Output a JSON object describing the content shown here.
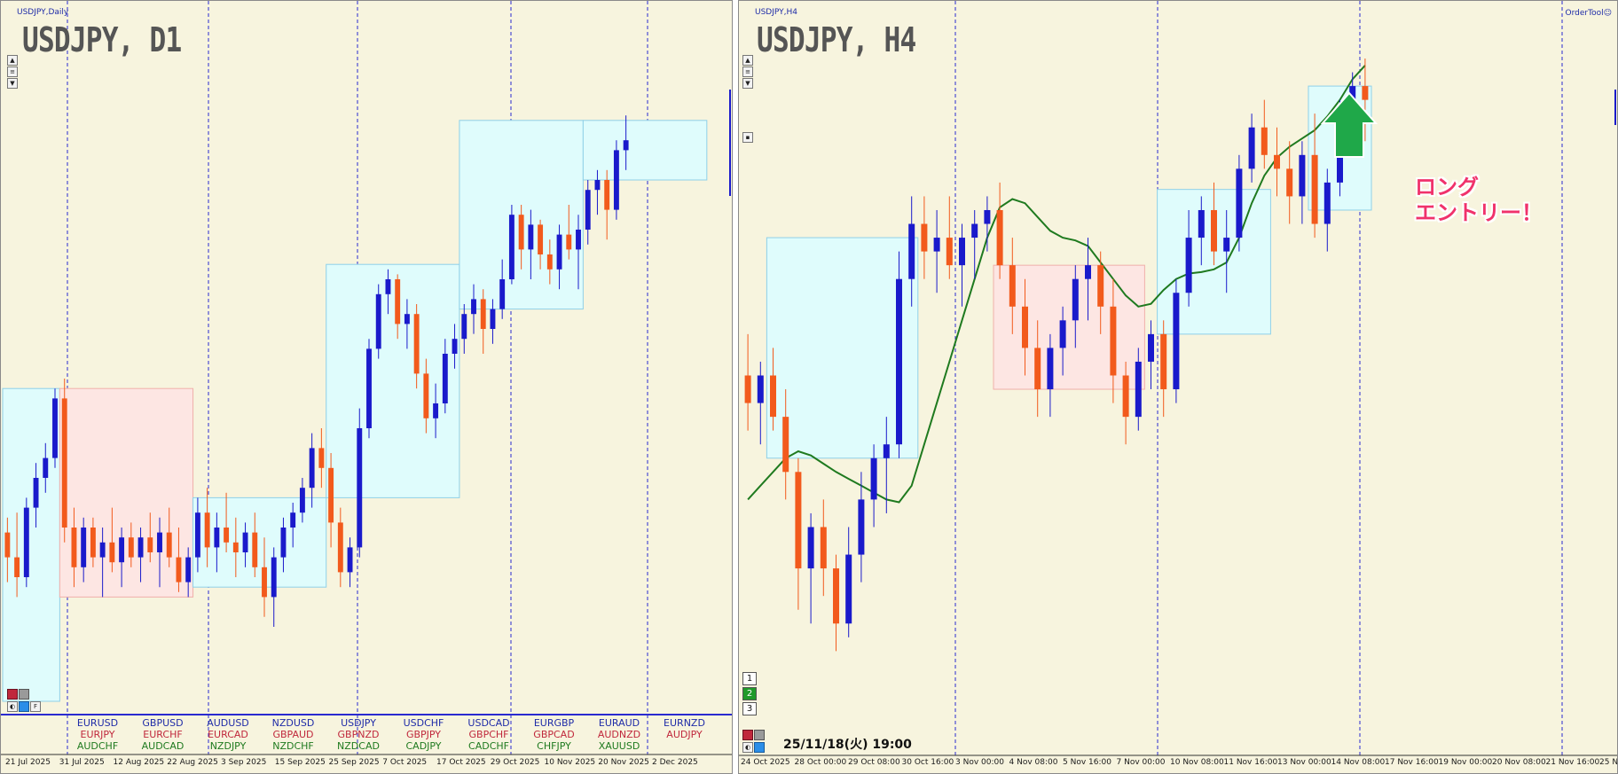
{
  "left_panel": {
    "caption": "USDJPY,Daily",
    "title": "USDJPY, D1",
    "x_labels": [
      "21 Jul 2025",
      "31 Jul 2025",
      "12 Aug 2025",
      "22 Aug 2025",
      "3 Sep 2025",
      "15 Sep 2025",
      "25 Sep 2025",
      "7 Oct 2025",
      "17 Oct 2025",
      "29 Oct 2025",
      "10 Nov 2025",
      "20 Nov 2025",
      "2 Dec 2025"
    ],
    "symbols": [
      [
        {
          "text": "EURUSD",
          "c": "#1f2ca8"
        },
        {
          "text": "EURJPY",
          "c": "#c0283c"
        },
        {
          "text": "AUDCHF",
          "c": "#1f7a1f"
        }
      ],
      [
        {
          "text": "GBPUSD",
          "c": "#1f2ca8"
        },
        {
          "text": "EURCHF",
          "c": "#c0283c"
        },
        {
          "text": "AUDCAD",
          "c": "#1f7a1f"
        }
      ],
      [
        {
          "text": "AUDUSD",
          "c": "#1f2ca8"
        },
        {
          "text": "EURCAD",
          "c": "#c0283c"
        },
        {
          "text": "NZDJPY",
          "c": "#1f7a1f"
        }
      ],
      [
        {
          "text": "NZDUSD",
          "c": "#1f2ca8"
        },
        {
          "text": "GBPAUD",
          "c": "#c0283c"
        },
        {
          "text": "NZDCHF",
          "c": "#1f7a1f"
        }
      ],
      [
        {
          "text": "USDJPY",
          "c": "#1f2ca8"
        },
        {
          "text": "GBPNZD",
          "c": "#c0283c"
        },
        {
          "text": "NZDCAD",
          "c": "#1f7a1f"
        }
      ],
      [
        {
          "text": "USDCHF",
          "c": "#1f2ca8"
        },
        {
          "text": "GBPJPY",
          "c": "#c0283c"
        },
        {
          "text": "CADJPY",
          "c": "#1f7a1f"
        }
      ],
      [
        {
          "text": "USDCAD",
          "c": "#1f2ca8"
        },
        {
          "text": "GBPCHF",
          "c": "#c0283c"
        },
        {
          "text": "CADCHF",
          "c": "#1f7a1f"
        }
      ],
      [
        {
          "text": "EURGBP",
          "c": "#1f2ca8"
        },
        {
          "text": "GBPCAD",
          "c": "#c0283c"
        },
        {
          "text": "CHFJPY",
          "c": "#1f7a1f"
        }
      ],
      [
        {
          "text": "EURAUD",
          "c": "#1f2ca8"
        },
        {
          "text": "AUDNZD",
          "c": "#c0283c"
        },
        {
          "text": "XAUUSD",
          "c": "#1f7a1f"
        }
      ],
      [
        {
          "text": "EURNZD",
          "c": "#1f2ca8"
        },
        {
          "text": "AUDJPY",
          "c": "#c0283c"
        }
      ]
    ],
    "buttons": {
      "f_label": "F"
    }
  },
  "right_panel": {
    "caption": "USDJPY,H4",
    "title": "USDJPY, H4",
    "order_tool": "OrderTool",
    "timestamp": "25/11/18(火) 19:00",
    "annotation": [
      "ロング",
      "エントリー！"
    ],
    "x_labels": [
      "24 Oct 2025",
      "28 Oct 00:00",
      "29 Oct 08:00",
      "30 Oct 16:00",
      "3 Nov 00:00",
      "4 Nov 08:00",
      "5 Nov 16:00",
      "7 Nov 00:00",
      "10 Nov 08:00",
      "11 Nov 16:00",
      "13 Nov 00:00",
      "14 Nov 08:00",
      "17 Nov 16:00",
      "19 Nov 00:00",
      "20 Nov 08:00",
      "21 Nov 16:00",
      "25 N"
    ],
    "num_buttons": [
      "1",
      "2",
      "3"
    ]
  },
  "colors": {
    "background": "#f7f4de",
    "bull": "#1a1acb",
    "bear": "#f25a1c",
    "range_up": "#dffcfc",
    "range_down": "#fde6e3",
    "ma": "#1f7a1f",
    "arrow": "#1fa849"
  },
  "chart_data": [
    {
      "type": "candlestick",
      "symbol": "USDJPY",
      "timeframe": "D1",
      "x_ticks": [
        "21 Jul 2025",
        "31 Jul 2025",
        "12 Aug 2025",
        "22 Aug 2025",
        "3 Sep 2025",
        "15 Sep 2025",
        "25 Sep 2025",
        "7 Oct 2025",
        "17 Oct 2025",
        "29 Oct 2025",
        "10 Nov 2025",
        "20 Nov 2025",
        "2 Dec 2025"
      ],
      "ylim": [
        144.5,
        157.5
      ],
      "candles": [
        {
          "o": 147.9,
          "h": 148.2,
          "l": 146.9,
          "c": 147.4
        },
        {
          "o": 147.4,
          "h": 148.3,
          "l": 146.6,
          "c": 147.0
        },
        {
          "o": 147.0,
          "h": 148.6,
          "l": 146.8,
          "c": 148.4
        },
        {
          "o": 148.4,
          "h": 149.3,
          "l": 148.0,
          "c": 149.0
        },
        {
          "o": 149.0,
          "h": 149.7,
          "l": 148.7,
          "c": 149.4
        },
        {
          "o": 149.4,
          "h": 150.8,
          "l": 149.2,
          "c": 150.6
        },
        {
          "o": 150.6,
          "h": 151.0,
          "l": 147.7,
          "c": 148.0
        },
        {
          "o": 148.0,
          "h": 148.4,
          "l": 146.8,
          "c": 147.2
        },
        {
          "o": 147.2,
          "h": 148.2,
          "l": 146.9,
          "c": 148.0
        },
        {
          "o": 148.0,
          "h": 148.2,
          "l": 147.2,
          "c": 147.4
        },
        {
          "o": 147.4,
          "h": 148.0,
          "l": 146.6,
          "c": 147.7
        },
        {
          "o": 147.7,
          "h": 148.4,
          "l": 147.1,
          "c": 147.3
        },
        {
          "o": 147.3,
          "h": 148.0,
          "l": 146.8,
          "c": 147.8
        },
        {
          "o": 147.8,
          "h": 148.1,
          "l": 147.2,
          "c": 147.4
        },
        {
          "o": 147.4,
          "h": 148.0,
          "l": 146.9,
          "c": 147.8
        },
        {
          "o": 147.8,
          "h": 148.3,
          "l": 147.3,
          "c": 147.5
        },
        {
          "o": 147.5,
          "h": 148.2,
          "l": 146.8,
          "c": 147.9
        },
        {
          "o": 147.9,
          "h": 148.4,
          "l": 147.2,
          "c": 147.4
        },
        {
          "o": 147.4,
          "h": 148.0,
          "l": 146.7,
          "c": 146.9
        },
        {
          "o": 146.9,
          "h": 147.6,
          "l": 146.6,
          "c": 147.4
        },
        {
          "o": 147.4,
          "h": 148.6,
          "l": 147.1,
          "c": 148.3
        },
        {
          "o": 148.3,
          "h": 148.8,
          "l": 147.2,
          "c": 147.6
        },
        {
          "o": 147.6,
          "h": 148.3,
          "l": 147.1,
          "c": 148.0
        },
        {
          "o": 148.0,
          "h": 148.7,
          "l": 147.5,
          "c": 147.7
        },
        {
          "o": 147.7,
          "h": 148.2,
          "l": 147.0,
          "c": 147.5
        },
        {
          "o": 147.5,
          "h": 148.1,
          "l": 147.2,
          "c": 147.9
        },
        {
          "o": 147.9,
          "h": 148.3,
          "l": 147.0,
          "c": 147.2
        },
        {
          "o": 147.2,
          "h": 147.8,
          "l": 146.2,
          "c": 146.6
        },
        {
          "o": 146.6,
          "h": 147.6,
          "l": 146.0,
          "c": 147.4
        },
        {
          "o": 147.4,
          "h": 148.2,
          "l": 147.1,
          "c": 148.0
        },
        {
          "o": 148.0,
          "h": 148.5,
          "l": 147.6,
          "c": 148.3
        },
        {
          "o": 148.3,
          "h": 149.0,
          "l": 148.1,
          "c": 148.8
        },
        {
          "o": 148.8,
          "h": 149.9,
          "l": 148.4,
          "c": 149.6
        },
        {
          "o": 149.6,
          "h": 150.0,
          "l": 148.8,
          "c": 149.2
        },
        {
          "o": 149.2,
          "h": 149.5,
          "l": 147.6,
          "c": 148.1
        },
        {
          "o": 148.1,
          "h": 148.4,
          "l": 146.8,
          "c": 147.1
        },
        {
          "o": 147.1,
          "h": 147.8,
          "l": 146.8,
          "c": 147.6
        },
        {
          "o": 147.6,
          "h": 150.4,
          "l": 147.4,
          "c": 150.0
        },
        {
          "o": 150.0,
          "h": 151.8,
          "l": 149.8,
          "c": 151.6
        },
        {
          "o": 151.6,
          "h": 152.9,
          "l": 151.4,
          "c": 152.7
        },
        {
          "o": 152.7,
          "h": 153.2,
          "l": 152.3,
          "c": 153.0
        },
        {
          "o": 153.0,
          "h": 153.1,
          "l": 151.8,
          "c": 152.1
        },
        {
          "o": 152.1,
          "h": 152.6,
          "l": 151.6,
          "c": 152.3
        },
        {
          "o": 152.3,
          "h": 152.5,
          "l": 150.8,
          "c": 151.1
        },
        {
          "o": 151.1,
          "h": 151.4,
          "l": 149.9,
          "c": 150.2
        },
        {
          "o": 150.2,
          "h": 150.9,
          "l": 149.8,
          "c": 150.5
        },
        {
          "o": 150.5,
          "h": 151.8,
          "l": 150.3,
          "c": 151.5
        },
        {
          "o": 151.5,
          "h": 152.1,
          "l": 151.2,
          "c": 151.8
        },
        {
          "o": 151.8,
          "h": 152.5,
          "l": 151.5,
          "c": 152.3
        },
        {
          "o": 152.3,
          "h": 152.9,
          "l": 151.9,
          "c": 152.6
        },
        {
          "o": 152.6,
          "h": 152.8,
          "l": 151.5,
          "c": 152.0
        },
        {
          "o": 152.0,
          "h": 152.6,
          "l": 151.7,
          "c": 152.4
        },
        {
          "o": 152.4,
          "h": 153.4,
          "l": 152.2,
          "c": 153.0
        },
        {
          "o": 153.0,
          "h": 154.5,
          "l": 152.9,
          "c": 154.3
        },
        {
          "o": 154.3,
          "h": 154.5,
          "l": 153.2,
          "c": 153.6
        },
        {
          "o": 153.6,
          "h": 154.4,
          "l": 153.0,
          "c": 154.1
        },
        {
          "o": 154.1,
          "h": 154.2,
          "l": 153.2,
          "c": 153.5
        },
        {
          "o": 153.5,
          "h": 153.8,
          "l": 152.9,
          "c": 153.2
        },
        {
          "o": 153.2,
          "h": 154.1,
          "l": 152.8,
          "c": 153.9
        },
        {
          "o": 153.9,
          "h": 154.5,
          "l": 153.4,
          "c": 153.6
        },
        {
          "o": 153.6,
          "h": 154.3,
          "l": 152.8,
          "c": 154.0
        },
        {
          "o": 154.0,
          "h": 155.0,
          "l": 153.7,
          "c": 154.8
        },
        {
          "o": 154.8,
          "h": 155.2,
          "l": 154.3,
          "c": 155.0
        },
        {
          "o": 155.0,
          "h": 155.2,
          "l": 153.8,
          "c": 154.4
        },
        {
          "o": 154.4,
          "h": 155.8,
          "l": 154.2,
          "c": 155.6
        },
        {
          "o": 155.6,
          "h": 156.3,
          "l": 155.2,
          "c": 155.8
        }
      ],
      "ranges": [
        {
          "start": 0,
          "end": 5,
          "top": 150.8,
          "bottom": 144.5,
          "dir": "up"
        },
        {
          "start": 6,
          "end": 19,
          "top": 150.8,
          "bottom": 146.6,
          "dir": "down"
        },
        {
          "start": 20,
          "end": 33,
          "top": 148.6,
          "bottom": 146.8,
          "dir": "up"
        },
        {
          "start": 34,
          "end": 47,
          "top": 153.3,
          "bottom": 148.6,
          "dir": "up"
        },
        {
          "start": 48,
          "end": 60,
          "top": 156.2,
          "bottom": 152.4,
          "dir": "up"
        },
        {
          "start": 61,
          "end": 73,
          "top": 156.2,
          "bottom": 155.0,
          "dir": "up"
        }
      ]
    },
    {
      "type": "candlestick",
      "symbol": "USDJPY",
      "timeframe": "H4",
      "x_ticks": [
        "24 Oct 2025",
        "28 Oct 00:00",
        "29 Oct 08:00",
        "30 Oct 16:00",
        "3 Nov 00:00",
        "4 Nov 08:00",
        "5 Nov 16:00",
        "7 Nov 00:00",
        "10 Nov 08:00",
        "11 Nov 16:00",
        "13 Nov 00:00",
        "14 Nov 08:00",
        "17 Nov 16:00",
        "19 Nov 00:00",
        "20 Nov 08:00",
        "21 Nov 16:00",
        "25 N"
      ],
      "ylim": [
        151.0,
        155.6
      ],
      "ma_line": [
        152.4,
        152.5,
        152.6,
        152.7,
        152.75,
        152.72,
        152.66,
        152.6,
        152.55,
        152.5,
        152.45,
        152.4,
        152.38,
        152.5,
        152.8,
        153.1,
        153.4,
        153.7,
        154.0,
        154.3,
        154.52,
        154.58,
        154.55,
        154.45,
        154.35,
        154.3,
        154.28,
        154.24,
        154.12,
        154.0,
        153.88,
        153.8,
        153.82,
        153.92,
        154.0,
        154.04,
        154.05,
        154.07,
        154.12,
        154.3,
        154.55,
        154.75,
        154.88,
        154.96,
        155.02,
        155.08,
        155.18,
        155.3,
        155.45,
        155.55
      ],
      "candles": [
        {
          "o": 153.3,
          "h": 153.6,
          "l": 152.9,
          "c": 153.1
        },
        {
          "o": 153.1,
          "h": 153.4,
          "l": 152.8,
          "c": 153.3
        },
        {
          "o": 153.3,
          "h": 153.5,
          "l": 152.9,
          "c": 153.0
        },
        {
          "o": 153.0,
          "h": 153.2,
          "l": 152.4,
          "c": 152.6
        },
        {
          "o": 152.6,
          "h": 152.7,
          "l": 151.6,
          "c": 151.9
        },
        {
          "o": 151.9,
          "h": 152.3,
          "l": 151.5,
          "c": 152.2
        },
        {
          "o": 152.2,
          "h": 152.4,
          "l": 151.7,
          "c": 151.9
        },
        {
          "o": 151.9,
          "h": 152.0,
          "l": 151.3,
          "c": 151.5
        },
        {
          "o": 151.5,
          "h": 152.2,
          "l": 151.4,
          "c": 152.0
        },
        {
          "o": 152.0,
          "h": 152.6,
          "l": 151.8,
          "c": 152.4
        },
        {
          "o": 152.4,
          "h": 152.8,
          "l": 152.2,
          "c": 152.7
        },
        {
          "o": 152.7,
          "h": 153.0,
          "l": 152.3,
          "c": 152.8
        },
        {
          "o": 152.8,
          "h": 154.2,
          "l": 152.7,
          "c": 154.0
        },
        {
          "o": 154.0,
          "h": 154.6,
          "l": 153.8,
          "c": 154.4
        },
        {
          "o": 154.4,
          "h": 154.6,
          "l": 154.0,
          "c": 154.2
        },
        {
          "o": 154.2,
          "h": 154.5,
          "l": 153.9,
          "c": 154.3
        },
        {
          "o": 154.3,
          "h": 154.6,
          "l": 154.0,
          "c": 154.1
        },
        {
          "o": 154.1,
          "h": 154.4,
          "l": 153.8,
          "c": 154.3
        },
        {
          "o": 154.3,
          "h": 154.5,
          "l": 154.0,
          "c": 154.4
        },
        {
          "o": 154.4,
          "h": 154.6,
          "l": 154.2,
          "c": 154.5
        },
        {
          "o": 154.5,
          "h": 154.7,
          "l": 154.0,
          "c": 154.1
        },
        {
          "o": 154.1,
          "h": 154.3,
          "l": 153.6,
          "c": 153.8
        },
        {
          "o": 153.8,
          "h": 154.0,
          "l": 153.3,
          "c": 153.5
        },
        {
          "o": 153.5,
          "h": 153.7,
          "l": 153.0,
          "c": 153.2
        },
        {
          "o": 153.2,
          "h": 153.6,
          "l": 153.0,
          "c": 153.5
        },
        {
          "o": 153.5,
          "h": 153.8,
          "l": 153.3,
          "c": 153.7
        },
        {
          "o": 153.7,
          "h": 154.1,
          "l": 153.5,
          "c": 154.0
        },
        {
          "o": 154.0,
          "h": 154.3,
          "l": 153.7,
          "c": 154.1
        },
        {
          "o": 154.1,
          "h": 154.2,
          "l": 153.6,
          "c": 153.8
        },
        {
          "o": 153.8,
          "h": 154.0,
          "l": 153.1,
          "c": 153.3
        },
        {
          "o": 153.3,
          "h": 153.4,
          "l": 152.8,
          "c": 153.0
        },
        {
          "o": 153.0,
          "h": 153.5,
          "l": 152.9,
          "c": 153.4
        },
        {
          "o": 153.4,
          "h": 153.7,
          "l": 153.2,
          "c": 153.6
        },
        {
          "o": 153.6,
          "h": 153.7,
          "l": 153.0,
          "c": 153.2
        },
        {
          "o": 153.2,
          "h": 154.0,
          "l": 153.1,
          "c": 153.9
        },
        {
          "o": 153.9,
          "h": 154.5,
          "l": 153.8,
          "c": 154.3
        },
        {
          "o": 154.3,
          "h": 154.6,
          "l": 154.1,
          "c": 154.5
        },
        {
          "o": 154.5,
          "h": 154.7,
          "l": 154.1,
          "c": 154.2
        },
        {
          "o": 154.2,
          "h": 154.5,
          "l": 153.9,
          "c": 154.3
        },
        {
          "o": 154.3,
          "h": 154.9,
          "l": 154.2,
          "c": 154.8
        },
        {
          "o": 154.8,
          "h": 155.2,
          "l": 154.7,
          "c": 155.1
        },
        {
          "o": 155.1,
          "h": 155.3,
          "l": 154.8,
          "c": 154.9
        },
        {
          "o": 154.9,
          "h": 155.1,
          "l": 154.6,
          "c": 154.8
        },
        {
          "o": 154.8,
          "h": 155.0,
          "l": 154.4,
          "c": 154.6
        },
        {
          "o": 154.6,
          "h": 155.0,
          "l": 154.4,
          "c": 154.9
        },
        {
          "o": 154.9,
          "h": 155.2,
          "l": 154.3,
          "c": 154.4
        },
        {
          "o": 154.4,
          "h": 154.8,
          "l": 154.2,
          "c": 154.7
        },
        {
          "o": 154.7,
          "h": 155.3,
          "l": 154.6,
          "c": 155.2
        },
        {
          "o": 155.2,
          "h": 155.5,
          "l": 155.0,
          "c": 155.4
        },
        {
          "o": 155.4,
          "h": 155.6,
          "l": 155.0,
          "c": 155.3
        }
      ],
      "ranges": [
        {
          "start": 2,
          "end": 13,
          "top": 154.3,
          "bottom": 152.7,
          "dir": "up"
        },
        {
          "start": 20,
          "end": 31,
          "top": 154.1,
          "bottom": 153.2,
          "dir": "down"
        },
        {
          "start": 33,
          "end": 41,
          "top": 154.65,
          "bottom": 153.6,
          "dir": "up"
        },
        {
          "start": 45,
          "end": 49,
          "top": 155.4,
          "bottom": 154.5,
          "dir": "up"
        }
      ]
    }
  ]
}
